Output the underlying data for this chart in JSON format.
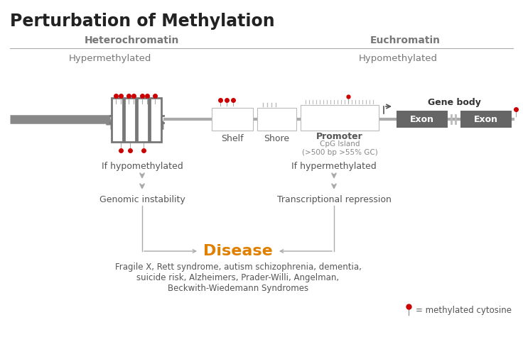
{
  "title": "Perturbation of Methylation",
  "bg_color": "#ffffff",
  "title_color": "#222222",
  "title_fontsize": 17,
  "heterochromatin_label": "Heterochromatin",
  "euchromatin_label": "Euchromatin",
  "hypermethylated_label": "Hypermethylated",
  "hypomethylated_label": "Hypomethylated",
  "label_color": "#777777",
  "shelf_label": "Shelf",
  "shore_label": "Shore",
  "promoter_label": "Promoter",
  "cpg_label": "CpG Island\n(>500 bp >55% GC)",
  "gene_body_label": "Gene body",
  "exon_color": "#666666",
  "chromosome_thick_color": "#888888",
  "chromosome_thin_color": "#aaaaaa",
  "nuc_color": "#777777",
  "red_dot_color": "#cc0000",
  "arrow_color": "#aaaaaa",
  "disease_color": "#e08000",
  "disease_label": "Disease",
  "if_hypomethylated": "If hypomethylated",
  "genomic_instability": "Genomic instability",
  "if_hypermethylated": "If hypermethylated",
  "transcriptional_repression": "Transcriptional repression",
  "diseases_text": "Fragile X, Rett syndrome, autism schizophrenia, dementia,\nsuicide risk, Alzheimers, Prader-Willi, Angelman,\nBeckwith-Wiedemann Syndromes",
  "legend_text": "= methylated cytosine",
  "box_edge_color": "#bbbbbb",
  "divider_color": "#aaaaaa",
  "text_color": "#555555"
}
